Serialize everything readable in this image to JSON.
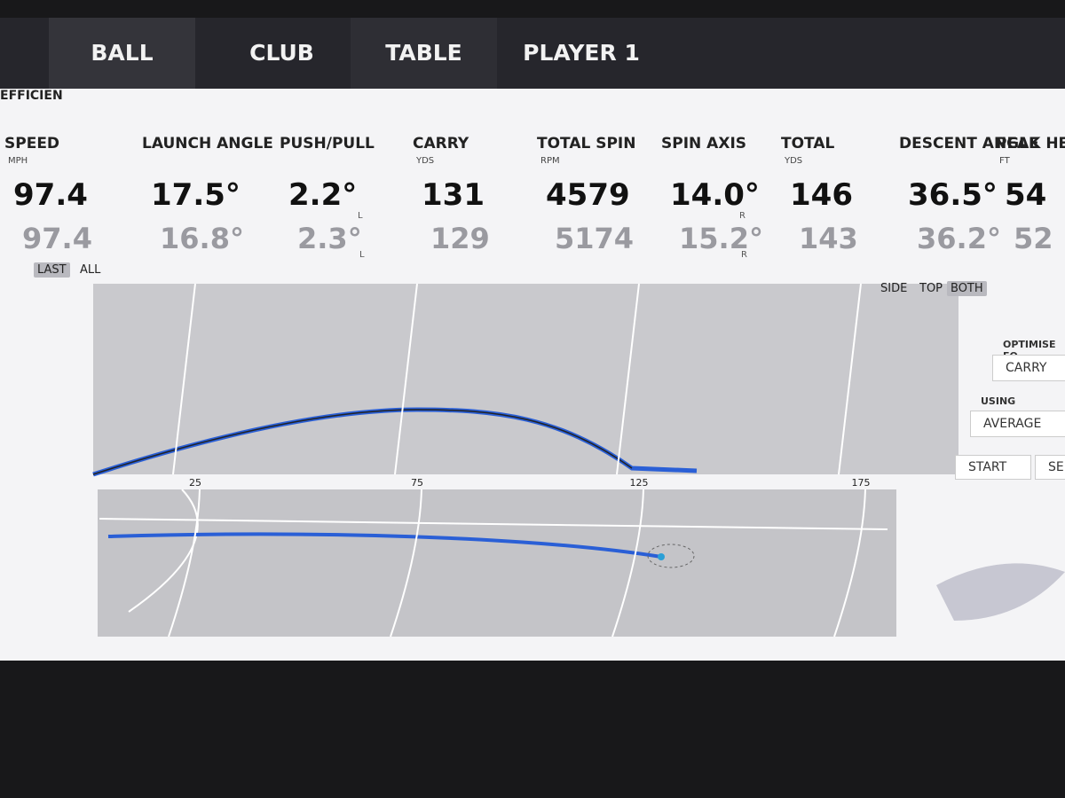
{
  "tabs": [
    "BALL",
    "CLUB",
    "TABLE",
    "PLAYER 1"
  ],
  "metrics": [
    {
      "label": "SPEED",
      "unit": "MPH",
      "value": "97.4",
      "compare": "97.4"
    },
    {
      "label": "LAUNCH ANGLE",
      "value": "17.5°",
      "compare": "16.8°"
    },
    {
      "label": "PUSH/PULL",
      "value": "2.2°",
      "side": "L",
      "compare": "2.3°",
      "compare_side": "L"
    },
    {
      "label": "CARRY",
      "unit": "YDS",
      "value": "131",
      "compare": "129"
    },
    {
      "label": "TOTAL SPIN",
      "unit": "RPM",
      "value": "4579",
      "compare": "5174"
    },
    {
      "label": "SPIN AXIS",
      "value": "14.0°",
      "side": "R",
      "compare": "15.2°",
      "compare_side": "R"
    },
    {
      "label": "TOTAL",
      "unit": "YDS",
      "value": "146",
      "compare": "143"
    },
    {
      "label": "DESCENT ANGLE",
      "value": "36.5°",
      "compare": "36.2°"
    },
    {
      "label": "PEAK HE",
      "unit": "FT",
      "value": "54",
      "compare": "52"
    }
  ],
  "shot_toggle": {
    "options": [
      "LAST",
      "ALL"
    ],
    "active": 0
  },
  "view_toggle": {
    "options": [
      "SIDE",
      "TOP",
      "BOTH"
    ],
    "active": 2
  },
  "trajectory": {
    "distance_ticks": [
      25,
      75,
      125,
      175
    ]
  },
  "panel": {
    "title": "EFFICIEN",
    "optimise_label": "OPTIMISE FO",
    "optimise_value": "CARRY",
    "using_label": "USING",
    "using_value": "AVERAGE",
    "buttons": [
      "START",
      "SE"
    ]
  }
}
